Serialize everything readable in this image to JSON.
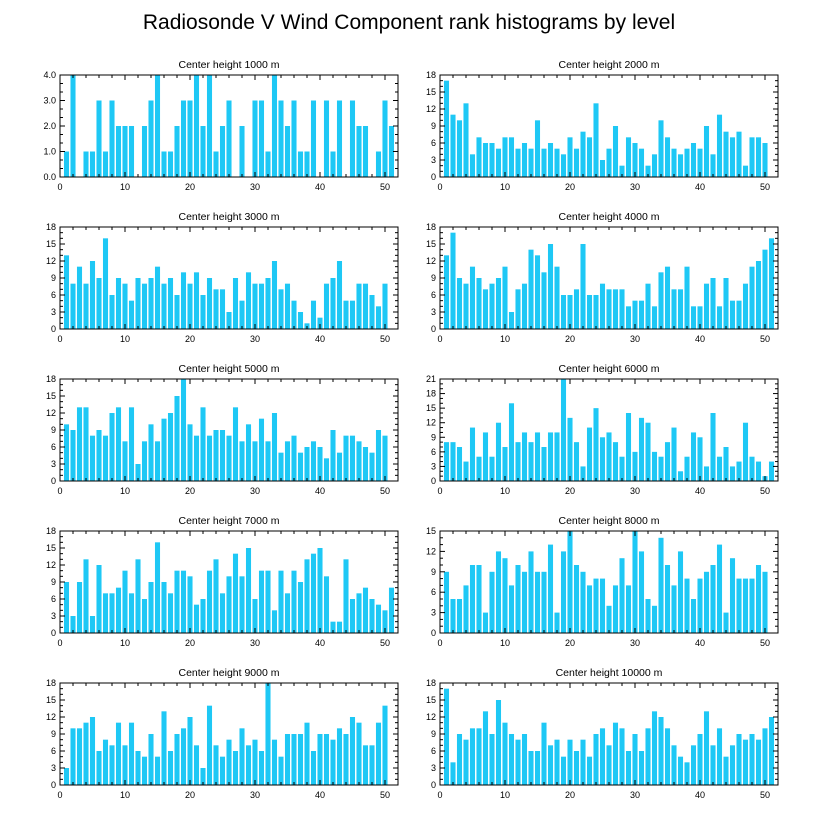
{
  "title": "Radiosonde V Wind Component rank histograms by level",
  "colors": {
    "bar": "#1ec8f5",
    "axis": "#000000",
    "background": "#ffffff"
  },
  "chart_data": [
    {
      "type": "bar",
      "title": "Center height 1000 m",
      "x": [
        1,
        2,
        3,
        4,
        5,
        6,
        7,
        8,
        9,
        10,
        11,
        12,
        13,
        14,
        15,
        16,
        17,
        18,
        19,
        20,
        21,
        22,
        23,
        24,
        25,
        26,
        27,
        28,
        29,
        30,
        31,
        32,
        33,
        34,
        35,
        36,
        37,
        38,
        39,
        40,
        41,
        42,
        43,
        44,
        45,
        46,
        47,
        48,
        49,
        50,
        51
      ],
      "values": [
        1,
        4,
        0,
        1,
        1,
        3,
        1,
        3,
        2,
        2,
        2,
        0,
        2,
        3,
        4,
        1,
        1,
        2,
        3,
        3,
        4,
        2,
        4,
        1,
        2,
        3,
        0,
        2,
        0,
        3,
        3,
        1,
        4,
        3,
        2,
        3,
        1,
        1,
        3,
        0,
        3,
        1,
        3,
        0,
        3,
        2,
        2,
        0,
        1,
        3,
        2
      ],
      "xlim": [
        0,
        52
      ],
      "ylim": [
        0,
        4
      ],
      "yticks": [
        "0.0",
        "1.0",
        "2.0",
        "3.0",
        "4.0"
      ],
      "xticks": [
        "0",
        "10",
        "20",
        "30",
        "40",
        "50"
      ],
      "grid": false
    },
    {
      "type": "bar",
      "title": "Center height 2000 m",
      "x": [
        1,
        2,
        3,
        4,
        5,
        6,
        7,
        8,
        9,
        10,
        11,
        12,
        13,
        14,
        15,
        16,
        17,
        18,
        19,
        20,
        21,
        22,
        23,
        24,
        25,
        26,
        27,
        28,
        29,
        30,
        31,
        32,
        33,
        34,
        35,
        36,
        37,
        38,
        39,
        40,
        41,
        42,
        43,
        44,
        45,
        46,
        47,
        48,
        49,
        50,
        51
      ],
      "values": [
        17,
        11,
        10,
        13,
        4,
        7,
        6,
        6,
        5,
        7,
        7,
        5,
        6,
        5,
        10,
        5,
        6,
        5,
        4,
        7,
        5,
        8,
        7,
        13,
        3,
        5,
        9,
        2,
        7,
        6,
        5,
        2,
        4,
        10,
        7,
        5,
        4,
        5,
        6,
        5,
        9,
        4,
        11,
        8,
        7,
        8,
        2,
        7,
        7,
        6,
        0
      ],
      "xlim": [
        0,
        52
      ],
      "ylim": [
        0,
        18
      ],
      "yticks": [
        "0",
        "3",
        "6",
        "9",
        "12",
        "15",
        "18"
      ],
      "xticks": [
        "0",
        "10",
        "20",
        "30",
        "40",
        "50"
      ],
      "grid": false
    },
    {
      "type": "bar",
      "title": "Center height 3000 m",
      "x": [
        1,
        2,
        3,
        4,
        5,
        6,
        7,
        8,
        9,
        10,
        11,
        12,
        13,
        14,
        15,
        16,
        17,
        18,
        19,
        20,
        21,
        22,
        23,
        24,
        25,
        26,
        27,
        28,
        29,
        30,
        31,
        32,
        33,
        34,
        35,
        36,
        37,
        38,
        39,
        40,
        41,
        42,
        43,
        44,
        45,
        46,
        47,
        48,
        49,
        50,
        51
      ],
      "values": [
        13,
        8,
        11,
        8,
        12,
        9,
        16,
        6,
        9,
        8,
        5,
        9,
        8,
        9,
        11,
        8,
        9,
        6,
        10,
        8,
        10,
        6,
        9,
        7,
        7,
        3,
        9,
        5,
        10,
        8,
        8,
        9,
        12,
        7,
        8,
        5,
        3,
        1,
        5,
        2,
        8,
        9,
        12,
        5,
        5,
        8,
        8,
        6,
        4,
        8,
        0
      ],
      "xlim": [
        0,
        52
      ],
      "ylim": [
        0,
        18
      ],
      "yticks": [
        "0",
        "3",
        "6",
        "9",
        "12",
        "15",
        "18"
      ],
      "xticks": [
        "0",
        "10",
        "20",
        "30",
        "40",
        "50"
      ],
      "grid": false
    },
    {
      "type": "bar",
      "title": "Center height 4000 m",
      "x": [
        1,
        2,
        3,
        4,
        5,
        6,
        7,
        8,
        9,
        10,
        11,
        12,
        13,
        14,
        15,
        16,
        17,
        18,
        19,
        20,
        21,
        22,
        23,
        24,
        25,
        26,
        27,
        28,
        29,
        30,
        31,
        32,
        33,
        34,
        35,
        36,
        37,
        38,
        39,
        40,
        41,
        42,
        43,
        44,
        45,
        46,
        47,
        48,
        49,
        50,
        51
      ],
      "values": [
        13,
        17,
        9,
        8,
        11,
        9,
        7,
        8,
        9,
        11,
        3,
        7,
        8,
        14,
        13,
        10,
        15,
        11,
        6,
        6,
        7,
        15,
        6,
        6,
        8,
        7,
        7,
        7,
        4,
        5,
        5,
        8,
        4,
        10,
        11,
        7,
        7,
        11,
        4,
        4,
        8,
        9,
        4,
        9,
        5,
        5,
        8,
        11,
        12,
        14,
        16
      ],
      "xlim": [
        0,
        52
      ],
      "ylim": [
        0,
        18
      ],
      "yticks": [
        "0",
        "3",
        "6",
        "9",
        "12",
        "15",
        "18"
      ],
      "xticks": [
        "0",
        "10",
        "20",
        "30",
        "40",
        "50"
      ],
      "grid": false
    },
    {
      "type": "bar",
      "title": "Center height 5000 m",
      "x": [
        1,
        2,
        3,
        4,
        5,
        6,
        7,
        8,
        9,
        10,
        11,
        12,
        13,
        14,
        15,
        16,
        17,
        18,
        19,
        20,
        21,
        22,
        23,
        24,
        25,
        26,
        27,
        28,
        29,
        30,
        31,
        32,
        33,
        34,
        35,
        36,
        37,
        38,
        39,
        40,
        41,
        42,
        43,
        44,
        45,
        46,
        47,
        48,
        49,
        50,
        51
      ],
      "values": [
        10,
        9,
        13,
        13,
        8,
        9,
        8,
        12,
        13,
        7,
        13,
        3,
        7,
        10,
        7,
        11,
        12,
        15,
        18,
        10,
        8,
        13,
        8,
        9,
        9,
        8,
        13,
        7,
        10,
        7,
        11,
        7,
        12,
        5,
        7,
        8,
        5,
        6,
        7,
        6,
        4,
        9,
        5,
        8,
        8,
        7,
        6,
        5,
        9,
        8,
        0
      ],
      "xlim": [
        0,
        52
      ],
      "ylim": [
        0,
        18
      ],
      "yticks": [
        "0",
        "3",
        "6",
        "9",
        "12",
        "15",
        "18"
      ],
      "xticks": [
        "0",
        "10",
        "20",
        "30",
        "40",
        "50"
      ],
      "grid": false
    },
    {
      "type": "bar",
      "title": "Center height 6000 m",
      "x": [
        1,
        2,
        3,
        4,
        5,
        6,
        7,
        8,
        9,
        10,
        11,
        12,
        13,
        14,
        15,
        16,
        17,
        18,
        19,
        20,
        21,
        22,
        23,
        24,
        25,
        26,
        27,
        28,
        29,
        30,
        31,
        32,
        33,
        34,
        35,
        36,
        37,
        38,
        39,
        40,
        41,
        42,
        43,
        44,
        45,
        46,
        47,
        48,
        49,
        50,
        51
      ],
      "values": [
        8,
        8,
        7,
        4,
        11,
        5,
        10,
        5,
        12,
        7,
        16,
        8,
        10,
        8,
        10,
        7,
        10,
        10,
        21,
        13,
        8,
        3,
        11,
        15,
        9,
        10,
        8,
        5,
        14,
        6,
        13,
        12,
        6,
        5,
        8,
        11,
        2,
        5,
        10,
        9,
        3,
        14,
        5,
        7,
        3,
        4,
        12,
        5,
        4,
        1,
        4
      ],
      "xlim": [
        0,
        52
      ],
      "ylim": [
        0,
        21
      ],
      "yticks": [
        "0",
        "3",
        "6",
        "9",
        "12",
        "15",
        "18",
        "21"
      ],
      "xticks": [
        "0",
        "10",
        "20",
        "30",
        "40",
        "50"
      ],
      "grid": false
    },
    {
      "type": "bar",
      "title": "Center height 7000 m",
      "x": [
        1,
        2,
        3,
        4,
        5,
        6,
        7,
        8,
        9,
        10,
        11,
        12,
        13,
        14,
        15,
        16,
        17,
        18,
        19,
        20,
        21,
        22,
        23,
        24,
        25,
        26,
        27,
        28,
        29,
        30,
        31,
        32,
        33,
        34,
        35,
        36,
        37,
        38,
        39,
        40,
        41,
        42,
        43,
        44,
        45,
        46,
        47,
        48,
        49,
        50,
        51
      ],
      "values": [
        9,
        3,
        9,
        13,
        3,
        12,
        7,
        7,
        8,
        11,
        7,
        13,
        6,
        9,
        16,
        9,
        7,
        11,
        11,
        10,
        5,
        6,
        11,
        13,
        7,
        10,
        14,
        10,
        15,
        6,
        11,
        11,
        4,
        11,
        7,
        11,
        9,
        13,
        14,
        15,
        10,
        2,
        2,
        13,
        6,
        7,
        8,
        6,
        5,
        4,
        8
      ],
      "xlim": [
        0,
        52
      ],
      "ylim": [
        0,
        18
      ],
      "yticks": [
        "0",
        "3",
        "6",
        "9",
        "12",
        "15",
        "18"
      ],
      "xticks": [
        "0",
        "10",
        "20",
        "30",
        "40",
        "50"
      ],
      "grid": false
    },
    {
      "type": "bar",
      "title": "Center height 8000 m",
      "x": [
        1,
        2,
        3,
        4,
        5,
        6,
        7,
        8,
        9,
        10,
        11,
        12,
        13,
        14,
        15,
        16,
        17,
        18,
        19,
        20,
        21,
        22,
        23,
        24,
        25,
        26,
        27,
        28,
        29,
        30,
        31,
        32,
        33,
        34,
        35,
        36,
        37,
        38,
        39,
        40,
        41,
        42,
        43,
        44,
        45,
        46,
        47,
        48,
        49,
        50,
        51
      ],
      "values": [
        9,
        5,
        5,
        7,
        10,
        10,
        3,
        9,
        12,
        11,
        7,
        10,
        9,
        12,
        9,
        9,
        13,
        3,
        12,
        15,
        10,
        9,
        7,
        8,
        8,
        4,
        7,
        11,
        7,
        15,
        12,
        5,
        4,
        14,
        10,
        7,
        12,
        8,
        5,
        8,
        9,
        10,
        13,
        3,
        11,
        8,
        8,
        8,
        10,
        9,
        0
      ],
      "xlim": [
        0,
        52
      ],
      "ylim": [
        0,
        15
      ],
      "yticks": [
        "0",
        "3",
        "6",
        "9",
        "12",
        "15"
      ],
      "xticks": [
        "0",
        "10",
        "20",
        "30",
        "40",
        "50"
      ],
      "grid": false
    },
    {
      "type": "bar",
      "title": "Center height 9000 m",
      "x": [
        1,
        2,
        3,
        4,
        5,
        6,
        7,
        8,
        9,
        10,
        11,
        12,
        13,
        14,
        15,
        16,
        17,
        18,
        19,
        20,
        21,
        22,
        23,
        24,
        25,
        26,
        27,
        28,
        29,
        30,
        31,
        32,
        33,
        34,
        35,
        36,
        37,
        38,
        39,
        40,
        41,
        42,
        43,
        44,
        45,
        46,
        47,
        48,
        49,
        50,
        51
      ],
      "values": [
        3,
        10,
        10,
        11,
        12,
        6,
        8,
        7,
        11,
        7,
        11,
        6,
        5,
        9,
        5,
        13,
        6,
        9,
        10,
        12,
        7,
        3,
        14,
        7,
        5,
        8,
        6,
        10,
        7,
        8,
        6,
        18,
        8,
        5,
        9,
        9,
        9,
        11,
        6,
        9,
        9,
        8,
        10,
        9,
        12,
        11,
        7,
        7,
        11,
        14,
        0
      ],
      "xlim": [
        0,
        52
      ],
      "ylim": [
        0,
        18
      ],
      "yticks": [
        "0",
        "3",
        "6",
        "9",
        "12",
        "15",
        "18"
      ],
      "xticks": [
        "0",
        "10",
        "20",
        "30",
        "40",
        "50"
      ],
      "grid": false
    },
    {
      "type": "bar",
      "title": "Center height 10000 m",
      "x": [
        1,
        2,
        3,
        4,
        5,
        6,
        7,
        8,
        9,
        10,
        11,
        12,
        13,
        14,
        15,
        16,
        17,
        18,
        19,
        20,
        21,
        22,
        23,
        24,
        25,
        26,
        27,
        28,
        29,
        30,
        31,
        32,
        33,
        34,
        35,
        36,
        37,
        38,
        39,
        40,
        41,
        42,
        43,
        44,
        45,
        46,
        47,
        48,
        49,
        50,
        51
      ],
      "values": [
        17,
        4,
        9,
        8,
        10,
        10,
        13,
        9,
        15,
        11,
        9,
        8,
        9,
        6,
        6,
        11,
        7,
        8,
        5,
        8,
        6,
        8,
        5,
        9,
        10,
        7,
        11,
        10,
        6,
        9,
        6,
        10,
        13,
        12,
        10,
        7,
        5,
        4,
        7,
        9,
        13,
        7,
        10,
        5,
        7,
        9,
        8,
        9,
        8,
        10,
        12
      ],
      "xlim": [
        0,
        52
      ],
      "ylim": [
        0,
        18
      ],
      "yticks": [
        "0",
        "3",
        "6",
        "9",
        "12",
        "15",
        "18"
      ],
      "xticks": [
        "0",
        "10",
        "20",
        "30",
        "40",
        "50"
      ],
      "grid": false
    }
  ]
}
